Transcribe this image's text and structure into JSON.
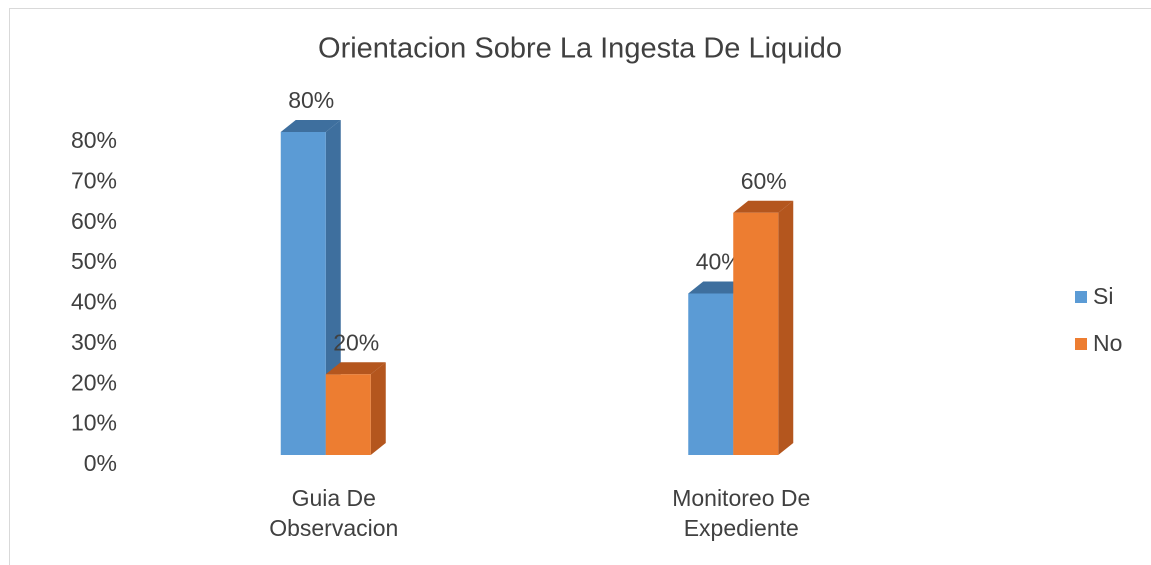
{
  "chart_data": {
    "type": "bar3d",
    "title": "Orientacion Sobre La Ingesta De Liquido",
    "categories": [
      "Guia De Observacion",
      "Monitoreo De Expediente"
    ],
    "series": [
      {
        "name": "Si",
        "color": "#5b9bd5",
        "side_color": "#3e6f9e",
        "values": [
          80,
          40
        ],
        "value_labels": [
          "80%",
          "40%"
        ]
      },
      {
        "name": "No",
        "color": "#ed7d31",
        "side_color": "#b4561e",
        "values": [
          20,
          60
        ],
        "value_labels": [
          "20%",
          "60%"
        ]
      }
    ],
    "ylim": [
      0,
      80
    ],
    "yticks": [
      {
        "value": 0,
        "label": "0%"
      },
      {
        "value": 10,
        "label": "10%"
      },
      {
        "value": 20,
        "label": "20%"
      },
      {
        "value": 30,
        "label": "30%"
      },
      {
        "value": 40,
        "label": "40%"
      },
      {
        "value": 50,
        "label": "50%"
      },
      {
        "value": 60,
        "label": "60%"
      },
      {
        "value": 70,
        "label": "70%"
      },
      {
        "value": 80,
        "label": "80%"
      }
    ],
    "grid": false,
    "legend": "right"
  }
}
